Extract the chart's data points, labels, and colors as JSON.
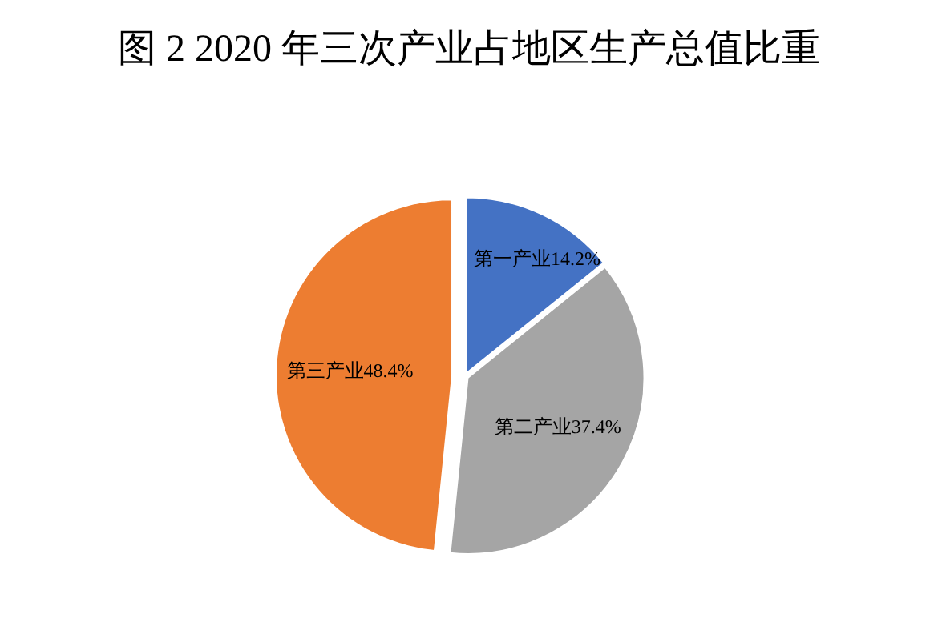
{
  "chart_data": {
    "type": "pie",
    "title": "图 2 2020 年三次产业占地区生产总值比重",
    "categories": [
      "第一产业",
      "第二产业",
      "第三产业"
    ],
    "values": [
      14.2,
      37.4,
      48.4
    ],
    "colors": [
      "#4472c4",
      "#a5a5a5",
      "#ed7d31"
    ],
    "value_labels": [
      "14.2%",
      "37.4%",
      "48.4%"
    ],
    "legend": false
  }
}
